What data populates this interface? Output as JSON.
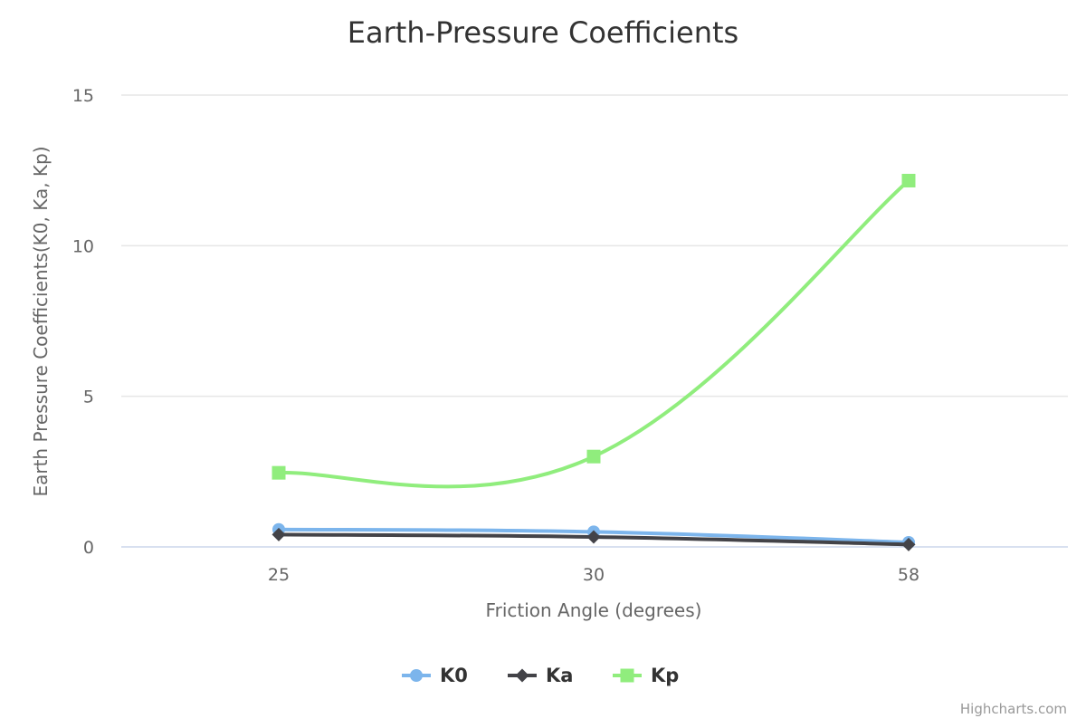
{
  "chart_data": {
    "type": "line",
    "title": "Earth-Pressure Coefficients",
    "xlabel": "Friction Angle (degrees)",
    "ylabel": "Earth Pressure Coefficients(K0, Ka, Kp)",
    "categories": [
      "25",
      "30",
      "58"
    ],
    "ylim": [
      0,
      15
    ],
    "yticks": [
      "0",
      "5",
      "10",
      "15"
    ],
    "grid": true,
    "legend_position": "bottom",
    "series": [
      {
        "name": "K0",
        "values": [
          0.58,
          0.5,
          0.15
        ],
        "color": "#7cb5ec",
        "marker": "circle"
      },
      {
        "name": "Ka",
        "values": [
          0.41,
          0.33,
          0.08
        ],
        "color": "#434348",
        "marker": "diamond"
      },
      {
        "name": "Kp",
        "values": [
          2.46,
          3.0,
          12.16
        ],
        "color": "#90ed7d",
        "marker": "square"
      }
    ]
  },
  "credits": "Highcharts.com"
}
